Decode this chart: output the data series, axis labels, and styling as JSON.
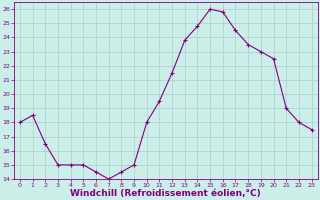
{
  "x": [
    0,
    1,
    2,
    3,
    4,
    5,
    6,
    7,
    8,
    9,
    10,
    11,
    12,
    13,
    14,
    15,
    16,
    17,
    18,
    19,
    20,
    21,
    22,
    23
  ],
  "y": [
    18,
    18.5,
    16.5,
    15,
    15,
    15,
    14.5,
    14,
    14.5,
    15,
    18,
    19.5,
    21.5,
    23.8,
    24.8,
    26,
    25.8,
    24.5,
    23.5,
    23,
    22.5,
    19,
    18,
    17.5
  ],
  "line_color": "#800080",
  "marker": "+",
  "bg_color": "#cceee8",
  "grid_color": "#aacccc",
  "xlabel": "Windchill (Refroidissement éolien,°C)",
  "xlabel_color": "#800080",
  "ylim": [
    14,
    26.5
  ],
  "yticks": [
    14,
    15,
    16,
    17,
    18,
    19,
    20,
    21,
    22,
    23,
    24,
    25,
    26
  ],
  "xticks": [
    0,
    1,
    2,
    3,
    4,
    5,
    6,
    7,
    8,
    9,
    10,
    11,
    12,
    13,
    14,
    15,
    16,
    17,
    18,
    19,
    20,
    21,
    22,
    23
  ],
  "tick_color": "#800080",
  "tick_fontsize": 4.5,
  "xlabel_fontsize": 6.5,
  "spine_color": "#800080",
  "xlim": [
    -0.5,
    23.5
  ]
}
